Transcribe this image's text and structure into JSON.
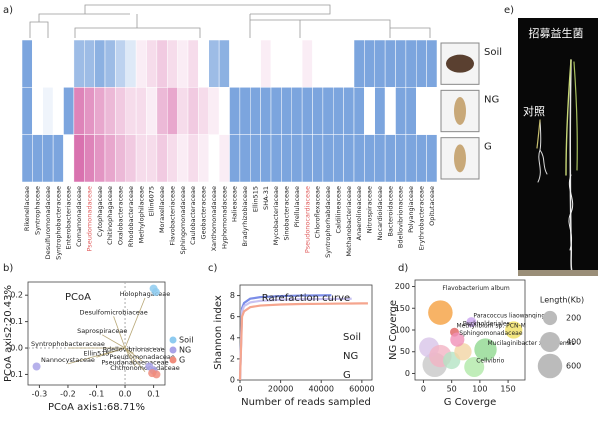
{
  "chart_data": [
    {
      "type": "heatmap",
      "label": "a)",
      "rows": [
        "Soil",
        "NG",
        "G"
      ],
      "columns": [
        "Rikenellaceae",
        "Syntrophaceae",
        "Desulfuromonadaceae",
        "Syntrophobacteraceae",
        "Enterobacteriaceae",
        "Comamonadaceae",
        "Pseudomonadaceae",
        "Cytophagaceae",
        "Chitinophagaceae",
        "Oxalobacteraceae",
        "Rhodobacteraceae",
        "Methylophilaceae",
        "Ellin6075",
        "Moraxellaceae",
        "Flavobacteriaceae",
        "Sphingomonadaceae",
        "Caulobacteraceae",
        "Geobacteraceae",
        "Xanthomonadaceae",
        "Hyphomonadaceae",
        "Halieaceae",
        "Bradyrhizobiaceae",
        "Ellin515",
        "SHA-31",
        "Mycobacteriaceae",
        "Sinobacteraceae",
        "Pirellulaceae",
        "Pseudonocardiaceae",
        "Chloroflexaceae",
        "Syntrophorhabdaceae",
        "Caldilineaceae",
        "Methanobacteriaceae",
        "Anaerolineaceae",
        "Nitrospiraceae",
        "Nocardioidaceae",
        "Bacteroidaceae",
        "Bdellovibrionaceae",
        "Polyangiaceae",
        "Erythrobacteraceae",
        "Opitutaceae"
      ],
      "values": [
        [
          0.1,
          0.5,
          0.5,
          0.5,
          0.5,
          0.2,
          0.2,
          0.15,
          0.2,
          0.3,
          0.4,
          0.55,
          0.6,
          0.65,
          0.6,
          0.55,
          0.6,
          0.5,
          0.2,
          0.15,
          0.5,
          0.5,
          0.5,
          0.55,
          0.5,
          0.5,
          0.5,
          0.55,
          0.5,
          0.5,
          0.5,
          0.5,
          0.1,
          0.1,
          0.1,
          0.1,
          0.1,
          0.1,
          0.1,
          0.1
        ],
        [
          0.1,
          0.5,
          0.45,
          0.5,
          0.1,
          0.85,
          0.8,
          0.75,
          0.7,
          0.65,
          0.6,
          0.6,
          0.55,
          0.7,
          0.75,
          0.6,
          0.65,
          0.6,
          0.55,
          0.5,
          0.1,
          0.1,
          0.1,
          0.1,
          0.1,
          0.1,
          0.1,
          0.1,
          0.1,
          0.1,
          0.1,
          0.1,
          0.1,
          0.5,
          0.1,
          0.5,
          0.1,
          0.1,
          0.5,
          0.5
        ],
        [
          0.1,
          0.1,
          0.1,
          0.1,
          0.5,
          0.9,
          0.85,
          0.8,
          0.75,
          0.7,
          0.65,
          0.6,
          0.6,
          0.65,
          0.6,
          0.55,
          0.6,
          0.55,
          0.5,
          0.55,
          0.1,
          0.1,
          0.1,
          0.1,
          0.1,
          0.1,
          0.1,
          0.1,
          0.1,
          0.1,
          0.1,
          0.1,
          0.1,
          0.1,
          0.1,
          0.1,
          0.1,
          0.1,
          0.1,
          0.1
        ]
      ],
      "low_color": "#5b8fd6",
      "mid_color": "#ffffff",
      "high_color": "#d04f9b",
      "highlight_indices": [
        6,
        27
      ],
      "highlight_color": "#e05a5a"
    },
    {
      "type": "scatter",
      "label": "b)",
      "title": "PCoA",
      "xlabel": "PCoA axis1:68.71%",
      "ylabel": "PCoA axis2:20.43%",
      "xlim": [
        -0.34,
        0.14
      ],
      "ylim": [
        -0.14,
        0.25
      ],
      "xticks": [
        -0.3,
        -0.2,
        -0.1,
        {
          "value": 0,
          "label": "0.0"
        },
        0.1
      ],
      "yticks": [
        -0.1,
        {
          "value": 0,
          "label": "0.0"
        },
        0.1,
        0.2
      ],
      "series": [
        {
          "name": "Soil",
          "color": "#8ecbf0",
          "x": [
            0.1,
            0.108
          ],
          "values": [
            0.225,
            0.212
          ]
        },
        {
          "name": "NG",
          "color": "#a9a3e8",
          "x": [
            -0.31,
            0.085,
            0.1
          ],
          "values": [
            -0.07,
            -0.07,
            -0.085
          ]
        },
        {
          "name": "G",
          "color": "#f08c7c",
          "x": [
            0.095,
            0.11
          ],
          "values": [
            -0.095,
            -0.1
          ]
        }
      ],
      "loadings": [
        {
          "name": "Holophagaceae",
          "x": 0.07,
          "y": 0.19
        },
        {
          "name": "Desulfomicrobiaceae",
          "x": -0.04,
          "y": 0.12
        },
        {
          "name": "Saprospiraceae",
          "x": -0.08,
          "y": 0.05
        },
        {
          "name": "Syntrophobacteraceae",
          "x": -0.2,
          "y": 0.0
        },
        {
          "name": "Nannocystaceae",
          "x": -0.2,
          "y": -0.06
        },
        {
          "name": "Ellin515",
          "x": -0.1,
          "y": -0.035
        },
        {
          "name": "Bdellovibrionaceae",
          "x": 0.03,
          "y": -0.02
        },
        {
          "name": "Pseudomonadaceae",
          "x": 0.06,
          "y": -0.05
        },
        {
          "name": "Pseudanabaenaceae",
          "x": 0.035,
          "y": -0.07
        },
        {
          "name": "Chthonomonadaceae",
          "x": 0.07,
          "y": -0.09
        }
      ],
      "loading_color": "#b8a878"
    },
    {
      "type": "line",
      "label": "c)",
      "title": "Rarefaction curve",
      "xlabel": "Number of reads sampled",
      "ylabel": "Shannon index",
      "xlim": [
        0,
        65000
      ],
      "ylim": [
        0,
        9
      ],
      "xticks": [
        0,
        20000,
        40000,
        60000
      ],
      "yticks": [
        0,
        2,
        4,
        6,
        8
      ],
      "x": [
        0,
        1000,
        2000,
        5000,
        10000,
        20000,
        30000,
        40000,
        45000,
        50000,
        55000,
        60000,
        63000
      ],
      "series": [
        {
          "name": "Soil",
          "color": "#7b8de8",
          "values": [
            0,
            6.8,
            7.3,
            7.7,
            7.85,
            7.95,
            8.0,
            8.02,
            8.03,
            null,
            null,
            null,
            null
          ]
        },
        {
          "name": "NG",
          "color": "#c8c2f2",
          "values": [
            0,
            6.5,
            7.0,
            7.35,
            7.5,
            7.6,
            7.65,
            7.67,
            7.68,
            7.69,
            7.7,
            null,
            null
          ]
        },
        {
          "name": "G",
          "color": "#f5a58e",
          "values": [
            0,
            6.0,
            6.5,
            6.9,
            7.05,
            7.15,
            7.2,
            7.22,
            7.23,
            7.24,
            7.25,
            7.26,
            7.26
          ]
        }
      ]
    },
    {
      "type": "bubble",
      "label": "d)",
      "xlabel": "G Coverge",
      "ylabel": "NG Coverge",
      "size_title": "Length(Kb)",
      "size_ticks": [
        200,
        400,
        600
      ],
      "xlim": [
        -15,
        180
      ],
      "ylim": [
        -15,
        215
      ],
      "xticks": [
        0,
        50,
        100,
        150
      ],
      "yticks": [
        0,
        50,
        100,
        150,
        200
      ],
      "points": [
        {
          "label": null,
          "x": 20,
          "y": 20,
          "size": 600,
          "color": "#c8c8c8"
        },
        {
          "label": null,
          "x": 10,
          "y": 60,
          "size": 400,
          "color": "#d8c4e8"
        },
        {
          "label": null,
          "x": 30,
          "y": 40,
          "size": 500,
          "color": "#f2b4c4"
        },
        {
          "label": null,
          "x": 50,
          "y": 30,
          "size": 300,
          "color": "#b4e4c4"
        },
        {
          "label": null,
          "x": 70,
          "y": 50,
          "size": 300,
          "color": "#f2d4a4"
        },
        {
          "label": "Flavobacterium album",
          "x": 30,
          "y": 140,
          "size": 600,
          "color": "#f5a040"
        },
        {
          "label": "Paracoccus liaowanqingii",
          "x": 85,
          "y": 118,
          "size": 100,
          "color": "#c9a3f0"
        },
        {
          "label": "Burkholderiales",
          "x": 160,
          "y": 100,
          "size": 300,
          "color": "#f0e060"
        },
        {
          "label": "Methylibium sp. PCN-M",
          "x": 55,
          "y": 95,
          "size": 80,
          "color": "#e06060"
        },
        {
          "label": "Sphingomonadaceae",
          "x": 60,
          "y": 78,
          "size": 200,
          "color": "#f090b8"
        },
        {
          "label": "Mucilaginibacter xinganensis",
          "x": 110,
          "y": 55,
          "size": 500,
          "color": "#90d890"
        },
        {
          "label": "Cellvibrio",
          "x": 90,
          "y": 15,
          "size": 400,
          "color": "#b0e8a8"
        }
      ]
    }
  ],
  "photo": {
    "label": "e)",
    "treated": "招募益生菌",
    "control": "对照"
  }
}
